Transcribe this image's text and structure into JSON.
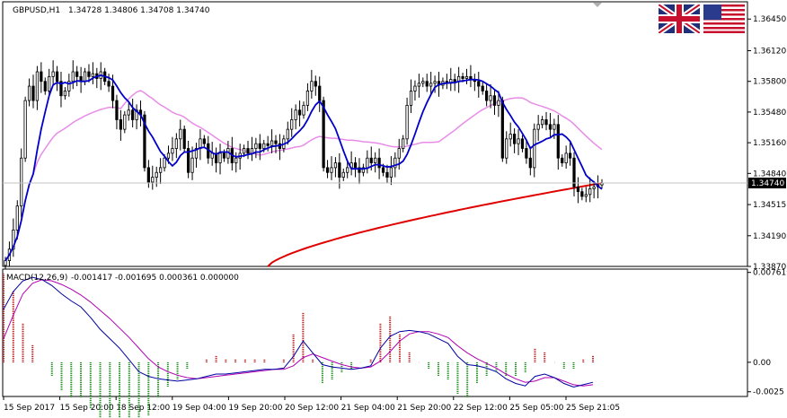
{
  "header": {
    "symbol": "GBPUSD,H1",
    "ohlc": "1.34728 1.34806 1.34708 1.34740"
  },
  "macd_header": {
    "label": "MACD(12,26,9)",
    "values": "-0.001417 -0.001695 0.000361 0.000000"
  },
  "flags": [
    "uk-flag-icon",
    "us-flag-icon"
  ],
  "colors": {
    "up_candle": "#000000",
    "down_candle": "#000000",
    "fast_ma": "#0000c8",
    "slow_ma": "#e88ce8",
    "long_ma": "#e00000",
    "hist_up": "#b40000",
    "hist_down": "#008000",
    "macd_line": "#0000a0",
    "signal_line": "#b000b0",
    "grid": "#c8c8c8"
  },
  "chart_data": [
    {
      "type": "candlestick",
      "title": "GBPUSD,H1",
      "ylim": [
        1.3387,
        1.3663
      ],
      "yticks": [
        "1.36450",
        "1.36120",
        "1.35800",
        "1.35480",
        "1.35160",
        "1.34840",
        "1.34515",
        "1.34190",
        "1.33870"
      ],
      "xticks": [
        "15 Sep 2017",
        "15 Sep 20:00",
        "18 Sep 12:00",
        "19 Sep 04:00",
        "19 Sep 20:00",
        "20 Sep 12:00",
        "21 Sep 04:00",
        "21 Sep 20:00",
        "22 Sep 12:00",
        "25 Sep 05:00",
        "25 Sep 21:05"
      ],
      "current_price": "1.34740",
      "close": [
        1.3393,
        1.3405,
        1.3425,
        1.345,
        1.35,
        1.356,
        1.3575,
        1.356,
        1.359,
        1.358,
        1.357,
        1.3585,
        1.359,
        1.358,
        1.3565,
        1.357,
        1.358,
        1.359,
        1.3585,
        1.358,
        1.359,
        1.3585,
        1.3588,
        1.3583,
        1.359,
        1.358,
        1.3575,
        1.356,
        1.354,
        1.353,
        1.3545,
        1.355,
        1.354,
        1.355,
        1.3545,
        1.349,
        1.3475,
        1.348,
        1.3485,
        1.349,
        1.35,
        1.3505,
        1.351,
        1.352,
        1.353,
        1.351,
        1.3485,
        1.35,
        1.351,
        1.352,
        1.3515,
        1.35,
        1.3505,
        1.3495,
        1.3505,
        1.35,
        1.351,
        1.3495,
        1.35,
        1.3505,
        1.351,
        1.3505,
        1.351,
        1.3515,
        1.351,
        1.3515,
        1.3513,
        1.3518,
        1.3515,
        1.351,
        1.352,
        1.353,
        1.354,
        1.355,
        1.3545,
        1.3555,
        1.357,
        1.358,
        1.3575,
        1.356,
        1.349,
        1.3485,
        1.349,
        1.3495,
        1.348,
        1.3485,
        1.349,
        1.3495,
        1.349,
        1.3485,
        1.349,
        1.35,
        1.3495,
        1.35,
        1.349,
        1.3485,
        1.348,
        1.349,
        1.35,
        1.351,
        1.352,
        1.3555,
        1.357,
        1.3575,
        1.3578,
        1.358,
        1.3575,
        1.3578,
        1.358,
        1.3576,
        1.358,
        1.3578,
        1.3582,
        1.358,
        1.3585,
        1.3583,
        1.3585,
        1.3582,
        1.358,
        1.3575,
        1.357,
        1.356,
        1.3565,
        1.3555,
        1.356,
        1.35,
        1.352,
        1.3525,
        1.3515,
        1.352,
        1.351,
        1.35,
        1.349,
        1.353,
        1.3535,
        1.354,
        1.3535,
        1.353,
        1.3535,
        1.35,
        1.3495,
        1.3505,
        1.35,
        1.347,
        1.3465,
        1.346,
        1.3462,
        1.3468,
        1.347,
        1.3472,
        1.3474
      ],
      "ma_fast_period": 8,
      "ma_slow_period": 30
    },
    {
      "type": "macd",
      "title": "MACD(12,26,9)",
      "ylim": [
        -0.0029,
        0.0079
      ],
      "yticks": [
        "0.007619",
        "0.00",
        "-0.0025"
      ],
      "macd": [
        0.0045,
        0.006,
        0.0069,
        0.0072,
        0.007,
        0.0065,
        0.0058,
        0.0052,
        0.0047,
        0.0038,
        0.0028,
        0.002,
        0.0012,
        0.0002,
        -0.0008,
        -0.0012,
        -0.0014,
        -0.0015,
        -0.0016,
        -0.0015,
        -0.0014,
        -0.0012,
        -0.001,
        -0.001,
        -0.0009,
        -0.0008,
        -0.0007,
        -0.0006,
        -0.0006,
        -0.0005,
        0.0005,
        0.0018,
        0.0008,
        -0.0002,
        -0.0004,
        -0.0005,
        -0.0006,
        -0.0005,
        -0.0003,
        0.0012,
        0.0022,
        0.0026,
        0.0027,
        0.0026,
        0.0024,
        0.002,
        0.0016,
        0.0005,
        -0.0002,
        -0.0003,
        -0.0005,
        -0.0008,
        -0.0014,
        -0.0018,
        -0.002,
        -0.0012,
        -0.001,
        -0.0013,
        -0.0018,
        -0.0021,
        -0.0019,
        -0.0017
      ],
      "signal": [
        0.002,
        0.004,
        0.0058,
        0.0067,
        0.007,
        0.0069,
        0.0066,
        0.0062,
        0.0057,
        0.0051,
        0.0044,
        0.0037,
        0.0029,
        0.0021,
        0.0012,
        0.0003,
        -0.0004,
        -0.0008,
        -0.0011,
        -0.0013,
        -0.0014,
        -0.0013,
        -0.0012,
        -0.0011,
        -0.001,
        -0.0009,
        -0.0008,
        -0.0007,
        -0.0006,
        -0.0006,
        -0.0003,
        0.0004,
        0.0007,
        0.0004,
        0.0001,
        -0.0002,
        -0.0004,
        -0.0005,
        -0.0004,
        0.0001,
        0.0009,
        0.0018,
        0.0024,
        0.0026,
        0.0026,
        0.0024,
        0.0021,
        0.0014,
        0.0008,
        0.0003,
        -0.0001,
        -0.0005,
        -0.001,
        -0.0014,
        -0.0017,
        -0.0016,
        -0.0013,
        -0.0013,
        -0.0016,
        -0.0019,
        -0.002,
        -0.0019
      ]
    }
  ]
}
